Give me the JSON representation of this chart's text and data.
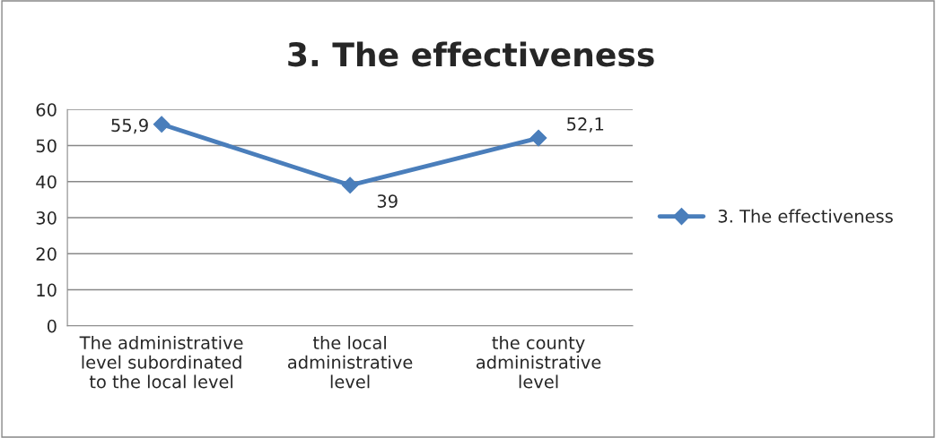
{
  "chart_data": {
    "type": "line",
    "title": "3. The effectiveness",
    "categories": [
      "The administrative\nlevel subordinated\nto the local level",
      "the local\nadministrative\nlevel",
      "the county\nadministrative\nlevel"
    ],
    "series": [
      {
        "name": "3. The effectiveness",
        "color": "#4a7ebb",
        "values": [
          55.9,
          39,
          52.1
        ],
        "value_labels": [
          "55,9",
          "39",
          "52,1"
        ]
      }
    ],
    "ylim": [
      0,
      60
    ],
    "yticks": [
      0,
      10,
      20,
      30,
      40,
      50,
      60
    ],
    "grid": "y",
    "legend": "right",
    "marker": "diamond",
    "line_style": "solid"
  }
}
